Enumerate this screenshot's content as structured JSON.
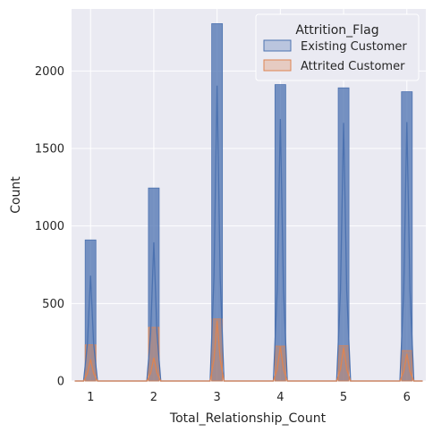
{
  "chart_data": {
    "type": "bar",
    "xlabel": "Total_Relationship_Count",
    "ylabel": "Count",
    "xlim": [
      0.7,
      6.3
    ],
    "ylim": [
      0,
      2400
    ],
    "xticks": [
      1,
      2,
      3,
      4,
      5,
      6
    ],
    "yticks": [
      0,
      500,
      1000,
      1500,
      2000
    ],
    "grid": true,
    "legend_title": "Attrition_Flag",
    "legend_position": "top-right",
    "categories": [
      1,
      2,
      3,
      4,
      5,
      6
    ],
    "series": [
      {
        "name": "Existing Customer",
        "color": "#4c72b0",
        "values": [
          910,
          1245,
          2305,
          1912,
          1891,
          1866
        ]
      },
      {
        "name": "Attrited Customer",
        "color": "#dd8452",
        "values": [
          233,
          346,
          400,
          225,
          227,
          196
        ]
      }
    ],
    "kde": [
      {
        "series": "Existing Customer",
        "peaks": [
          680,
          895,
          1905,
          1690,
          1665,
          1670
        ]
      },
      {
        "series": "Attrited Customer",
        "peaks": [
          140,
          150,
          390,
          220,
          215,
          175
        ]
      }
    ]
  }
}
